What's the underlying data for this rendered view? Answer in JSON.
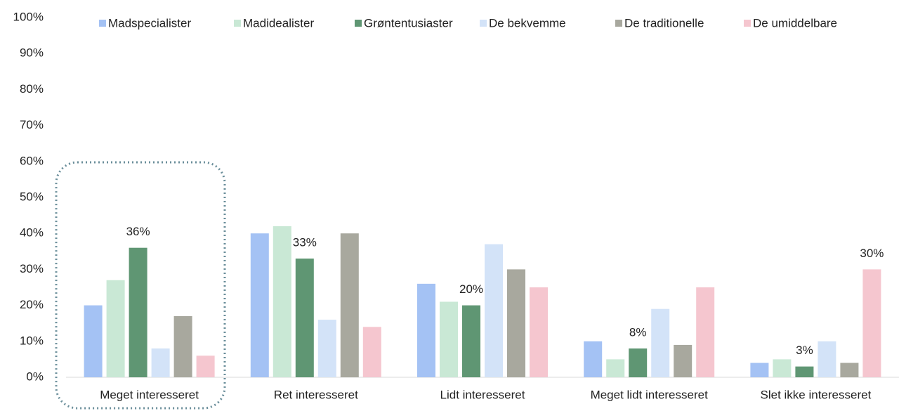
{
  "chart_data": {
    "type": "bar",
    "categories": [
      "Meget interesseret",
      "Ret interesseret",
      "Lidt interesseret",
      "Meget lidt interesseret",
      "Slet ikke interesseret"
    ],
    "series": [
      {
        "name": "Madspecialister",
        "color": "#a4c2f4",
        "values": [
          20,
          40,
          26,
          10,
          4
        ]
      },
      {
        "name": "Madidealister",
        "color": "#c9e8d5",
        "values": [
          27,
          42,
          21,
          5,
          5
        ]
      },
      {
        "name": "Grøntentusiaster",
        "color": "#5f9673",
        "values": [
          36,
          33,
          20,
          8,
          3
        ],
        "value_labels": [
          "36%",
          "33%",
          "20%",
          "8%",
          "3%"
        ]
      },
      {
        "name": "De bekvemme",
        "color": "#d3e3f8",
        "values": [
          8,
          16,
          37,
          19,
          10
        ]
      },
      {
        "name": "De traditionelle",
        "color": "#a8a89e",
        "values": [
          17,
          40,
          30,
          9,
          4
        ]
      },
      {
        "name": "De umiddelbare",
        "color": "#f5c6cf",
        "values": [
          6,
          14,
          25,
          25,
          30
        ],
        "value_labels": [
          null,
          null,
          null,
          null,
          "30%"
        ]
      }
    ],
    "ylim": [
      0,
      100
    ],
    "yticks": [
      {
        "value": 0,
        "label": "0%"
      },
      {
        "value": 10,
        "label": "10%"
      },
      {
        "value": 20,
        "label": "20%"
      },
      {
        "value": 30,
        "label": "30%"
      },
      {
        "value": 40,
        "label": "40%"
      },
      {
        "value": 50,
        "label": "50%"
      },
      {
        "value": 60,
        "label": "60%"
      },
      {
        "value": 70,
        "label": "70%"
      },
      {
        "value": 80,
        "label": "80%"
      },
      {
        "value": 90,
        "label": "90%"
      },
      {
        "value": 100,
        "label": "100%"
      }
    ],
    "grid": false,
    "legend": "top"
  }
}
